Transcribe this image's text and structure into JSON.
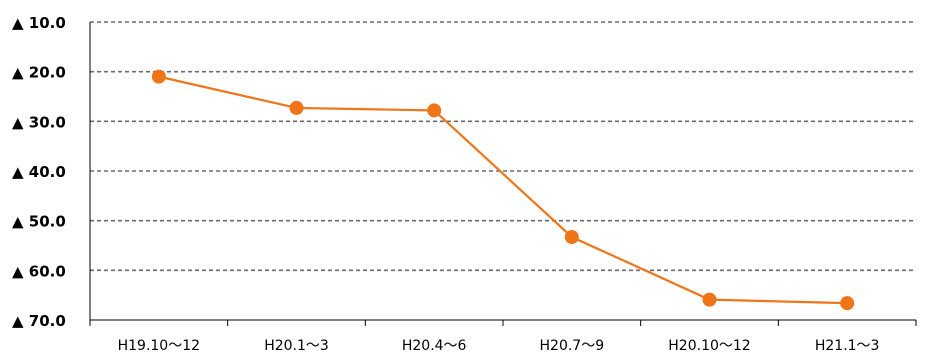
{
  "chart_data": {
    "type": "line",
    "title": "",
    "xlabel": "",
    "ylabel": "",
    "y_inverted": true,
    "ylim": [
      10,
      70
    ],
    "y_ticks": [
      10,
      20,
      30,
      40,
      50,
      60,
      70
    ],
    "y_tick_labels": [
      "▲ 10.0",
      "▲ 20.0",
      "▲ 30.0",
      "▲ 40.0",
      "▲ 50.0",
      "▲ 60.0",
      "▲ 70.0"
    ],
    "grid": "horizontal-dashed",
    "categories": [
      "H19.10〜12",
      "H20.1〜3",
      "H20.4〜6",
      "H20.7〜9",
      "H20.10〜12",
      "H21.1〜3"
    ],
    "series": [
      {
        "values": [
          21.0,
          27.3,
          27.8,
          53.3,
          65.9,
          66.6
        ],
        "color": "#f07518"
      }
    ]
  }
}
